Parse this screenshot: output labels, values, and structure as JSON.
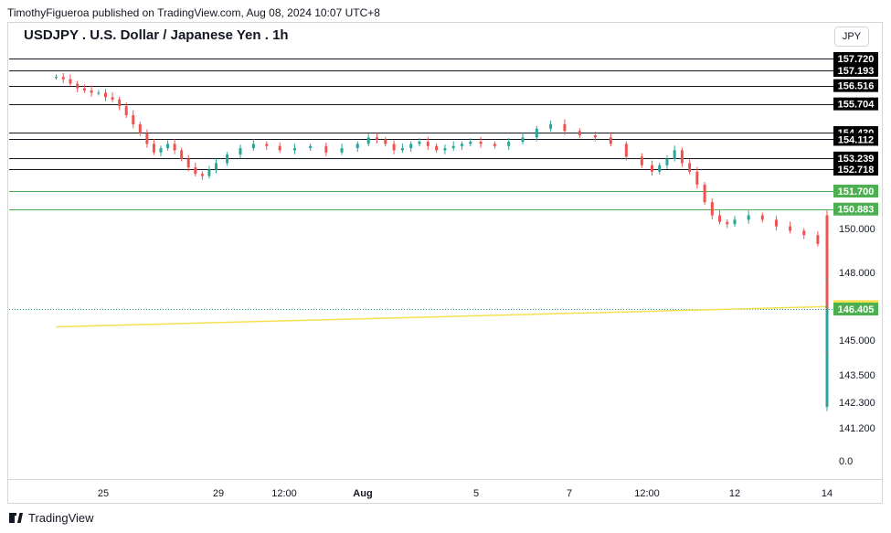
{
  "header": {
    "published_text": "TimothyFigueroa published on TradingView.com, Aug 08, 2024 10:07 UTC+8",
    "title": "USDJPY . U.S. Dollar / Japanese Yen . 1h",
    "currency": "JPY"
  },
  "footer": {
    "brand": "TradingView"
  },
  "colors": {
    "up": "#26a69a",
    "down": "#ef5350",
    "resistance_line": "#131722",
    "support_line": "#4caf50",
    "trendline": "#f5e050",
    "current_price_line": "#26a69a"
  },
  "chart_data": {
    "type": "candlestick",
    "symbol": "USDJPY",
    "timeframe": "1h",
    "x_tick_labels": [
      {
        "label": "25",
        "x": 24
      },
      {
        "label": "29",
        "x": 29
      },
      {
        "label": "12:00",
        "x": 30.5
      },
      {
        "label": "Aug",
        "x": 32
      },
      {
        "label": "5",
        "x": 36
      },
      {
        "label": "7",
        "x": 38
      },
      {
        "label": "12:00",
        "x": 39.5
      },
      {
        "label": "12",
        "x": 43
      },
      {
        "label": "14",
        "x": 45
      }
    ],
    "y_tick_labels": [
      "150.000",
      "148.000",
      "145.000",
      "143.500",
      "142.300",
      "141.200",
      "0.0"
    ],
    "price_labels": [
      {
        "value": 157.72,
        "text": "157.720",
        "style": "black"
      },
      {
        "value": 157.193,
        "text": "157.193",
        "style": "black"
      },
      {
        "value": 156.516,
        "text": "156.516",
        "style": "black"
      },
      {
        "value": 155.704,
        "text": "155.704",
        "style": "black"
      },
      {
        "value": 154.43,
        "text": "154.430",
        "style": "black"
      },
      {
        "value": 154.112,
        "text": "154.112",
        "style": "black"
      },
      {
        "value": 153.239,
        "text": "153.239",
        "style": "black"
      },
      {
        "value": 152.718,
        "text": "152.718",
        "style": "black"
      },
      {
        "value": 151.7,
        "text": "151.700",
        "style": "green"
      },
      {
        "value": 150.883,
        "text": "150.883",
        "style": "green"
      },
      {
        "value": 146.512,
        "text": "146.512",
        "style": "yellow"
      },
      {
        "value": 146.405,
        "text": "146.405",
        "style": "green"
      }
    ],
    "horizontal_levels": [
      {
        "value": 157.72,
        "kind": "resistance"
      },
      {
        "value": 157.193,
        "kind": "resistance"
      },
      {
        "value": 156.516,
        "kind": "resistance"
      },
      {
        "value": 155.704,
        "kind": "resistance"
      },
      {
        "value": 154.43,
        "kind": "resistance"
      },
      {
        "value": 154.112,
        "kind": "resistance"
      },
      {
        "value": 153.239,
        "kind": "resistance"
      },
      {
        "value": 152.718,
        "kind": "resistance"
      },
      {
        "value": 151.7,
        "kind": "support"
      },
      {
        "value": 150.883,
        "kind": "support"
      },
      {
        "value": 146.405,
        "kind": "current"
      }
    ],
    "trendline": {
      "from": {
        "x": 22,
        "y": 145.6
      },
      "to": {
        "x": 45,
        "y": 146.51
      }
    },
    "close_series": {
      "x_start": 22,
      "x_step": 0.3,
      "values": [
        156.9,
        156.8,
        156.6,
        156.4,
        156.3,
        156.2,
        156.2,
        156.0,
        155.9,
        155.6,
        155.2,
        154.8,
        154.4,
        153.9,
        153.5,
        153.7,
        153.9,
        153.6,
        153.2,
        152.8,
        152.5,
        152.4,
        152.7,
        153.0,
        153.4,
        153.7,
        153.9,
        153.8,
        153.6,
        153.7,
        153.8,
        153.5,
        153.7,
        153.9,
        154.2,
        154.1,
        153.9,
        153.6,
        153.7,
        153.9,
        154.0,
        153.8,
        153.6,
        153.7,
        153.8,
        153.9,
        154.0,
        153.9,
        153.8,
        154.0,
        154.2,
        154.6,
        154.8,
        154.5,
        154.3,
        154.2,
        153.9,
        153.3,
        152.9,
        152.6,
        152.9,
        153.2,
        153.6,
        153.0,
        152.6,
        152.0,
        151.2,
        150.6,
        150.3,
        150.2,
        150.4,
        150.6,
        150.4,
        150.1,
        149.9,
        149.7,
        149.3,
        149.5,
        149.9,
        150.2,
        150.0,
        150.4,
        150.6,
        150.1,
        149.8,
        149.6,
        149.5,
        149.3,
        149.0,
        149.2,
        149.4,
        149.2,
        149.0,
        148.8,
        148.6,
        148.4,
        147.6,
        146.8,
        146.3,
        146.1,
        146.0,
        145.6,
        144.8,
        144.0,
        143.2,
        142.3,
        142.1,
        142.5,
        142.7,
        142.4,
        142.8,
        143.5,
        144.0,
        144.4,
        144.6,
        145.2,
        145.8,
        146.3,
        146.0,
        145.6,
        145.3,
        145.0,
        145.4,
        145.7,
        145.5,
        145.2,
        144.8,
        145.0,
        145.3,
        145.1,
        144.8,
        144.6,
        144.9,
        145.2,
        146.0,
        147.0,
        147.6,
        147.4,
        147.0,
        147.3,
        147.5,
        147.2,
        147.0,
        147.3,
        147.4,
        147.1,
        146.8,
        146.7,
        146.4,
        146.3,
        146.0,
        146.2,
        146.4
      ]
    }
  }
}
